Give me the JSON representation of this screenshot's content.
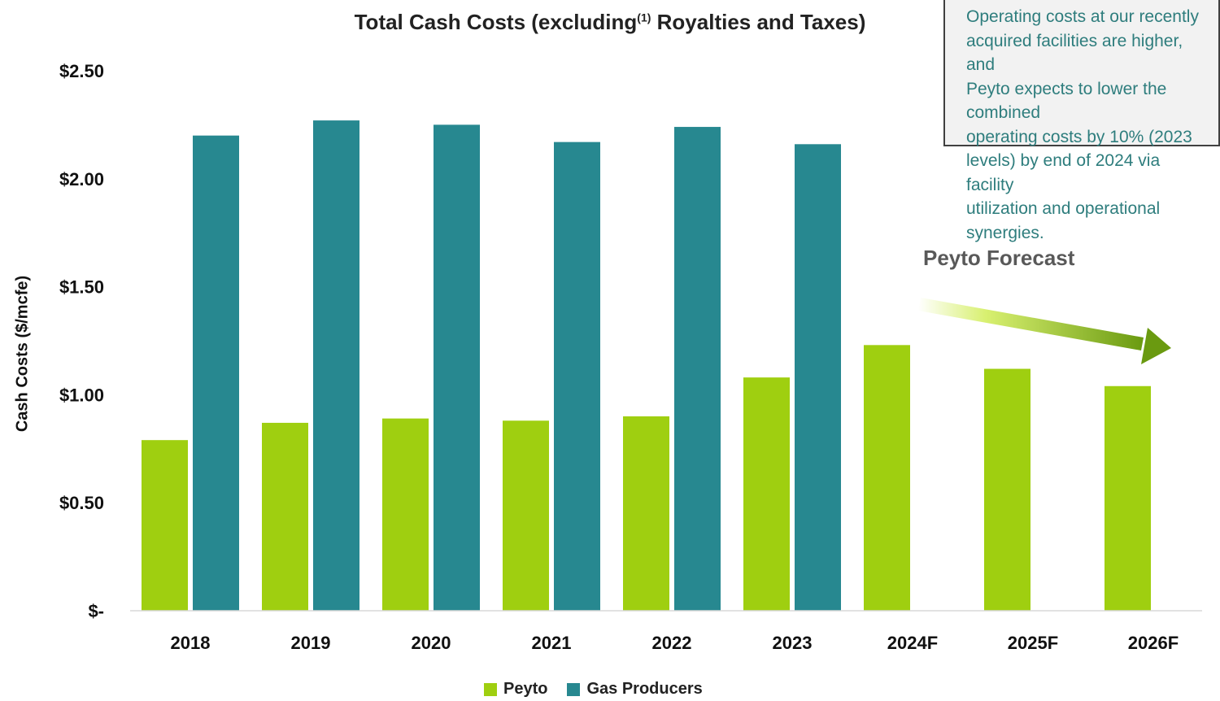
{
  "chart_data": {
    "type": "bar",
    "title_main": "Total Cash Costs (excluding",
    "title_sup": "(1)",
    "title_tail": " Royalties and Taxes)",
    "ylabel": "Cash Costs ($/mcfe)",
    "xlabel": "",
    "ylim": [
      0,
      2.5
    ],
    "yticks": [
      {
        "value": 0,
        "label": "$-"
      },
      {
        "value": 0.5,
        "label": "$0.50"
      },
      {
        "value": 1.0,
        "label": "$1.00"
      },
      {
        "value": 1.5,
        "label": "$1.50"
      },
      {
        "value": 2.0,
        "label": "$2.00"
      },
      {
        "value": 2.5,
        "label": "$2.50"
      }
    ],
    "categories": [
      "2018",
      "2019",
      "2020",
      "2021",
      "2022",
      "2023",
      "2024F",
      "2025F",
      "2026F"
    ],
    "series": [
      {
        "name": "Peyto",
        "color": "#9fcf10",
        "values": [
          0.79,
          0.87,
          0.89,
          0.88,
          0.9,
          1.08,
          1.23,
          1.12,
          1.04
        ]
      },
      {
        "name": "Gas Producers",
        "color": "#278890",
        "values": [
          2.2,
          2.27,
          2.25,
          2.17,
          2.24,
          2.16,
          null,
          null,
          null
        ]
      }
    ],
    "grid": false,
    "legend": "bottom-center"
  },
  "callout": {
    "text": "Operating costs at our recently\nacquired facilities are higher, and\nPeyto expects to lower the combined\noperating costs by 10% (2023\nlevels) by end of 2024 via facility\nutilization and operational synergies."
  },
  "annotation": {
    "forecast_label": "Peyto Forecast"
  }
}
